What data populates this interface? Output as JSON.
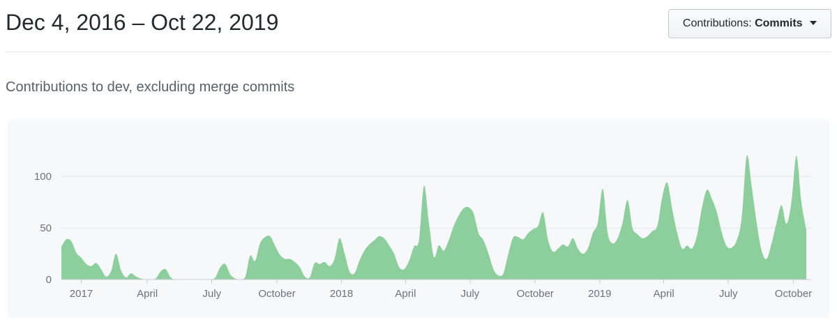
{
  "header": {
    "title": "Dec 4, 2016 – Oct 22, 2019",
    "filter_button": {
      "prefix": "Contributions:",
      "value": "Commits"
    }
  },
  "subtitle": "Contributions to dev, excluding merge commits",
  "chart_data": {
    "type": "area",
    "title": "Contributions to dev, excluding merge commits",
    "x_range": [
      "Dec 4, 2016",
      "Oct 22, 2019"
    ],
    "x_unit": "week",
    "xlabel": "",
    "ylabel": "",
    "y_ticks": [
      0,
      50,
      100
    ],
    "ylim": [
      0,
      155
    ],
    "grid": true,
    "legend": false,
    "x_ticks": [
      {
        "label": "2017",
        "week": 4.0
      },
      {
        "label": "April",
        "week": 17.3
      },
      {
        "label": "July",
        "week": 30.3
      },
      {
        "label": "October",
        "week": 43.4
      },
      {
        "label": "2018",
        "week": 56.4
      },
      {
        "label": "April",
        "week": 69.3
      },
      {
        "label": "July",
        "week": 82.3
      },
      {
        "label": "October",
        "week": 95.4
      },
      {
        "label": "2019",
        "week": 108.4
      },
      {
        "label": "April",
        "week": 121.3
      },
      {
        "label": "July",
        "week": 134.3
      },
      {
        "label": "October",
        "week": 147.4
      }
    ],
    "series": [
      {
        "name": "Commits",
        "values": [
          32,
          39,
          37,
          26,
          21,
          15,
          13,
          16,
          10,
          3,
          8,
          25,
          9,
          2,
          6,
          3,
          1,
          0,
          0,
          1,
          8,
          10,
          2,
          0,
          0,
          0,
          0,
          0,
          0,
          0,
          0,
          2,
          12,
          15,
          5,
          1,
          0,
          2,
          23,
          18,
          35,
          41,
          42,
          33,
          24,
          20,
          20,
          17,
          12,
          3,
          2,
          16,
          15,
          17,
          13,
          20,
          40,
          26,
          8,
          6,
          18,
          28,
          34,
          38,
          42,
          40,
          33,
          25,
          12,
          10,
          18,
          32,
          38,
          91,
          55,
          22,
          33,
          28,
          38,
          52,
          62,
          69,
          70,
          64,
          45,
          38,
          25,
          10,
          4,
          6,
          25,
          41,
          41,
          39,
          45,
          49,
          52,
          65,
          38,
          27,
          30,
          34,
          32,
          40,
          30,
          25,
          30,
          45,
          55,
          88,
          45,
          35,
          40,
          55,
          77,
          50,
          44,
          40,
          42,
          47,
          52,
          80,
          94,
          68,
          45,
          30,
          33,
          30,
          43,
          70,
          87,
          78,
          65,
          45,
          32,
          31,
          38,
          60,
          120,
          90,
          55,
          28,
          20,
          35,
          55,
          72,
          54,
          75,
          120,
          75,
          48
        ]
      }
    ],
    "colors": {
      "area_fill": "#8dce9d",
      "plot_background": "#f6f8fa",
      "gridline": "#e1e4e8",
      "axis_line": "#c9cdd3",
      "axis_text": "#6a737d"
    }
  }
}
